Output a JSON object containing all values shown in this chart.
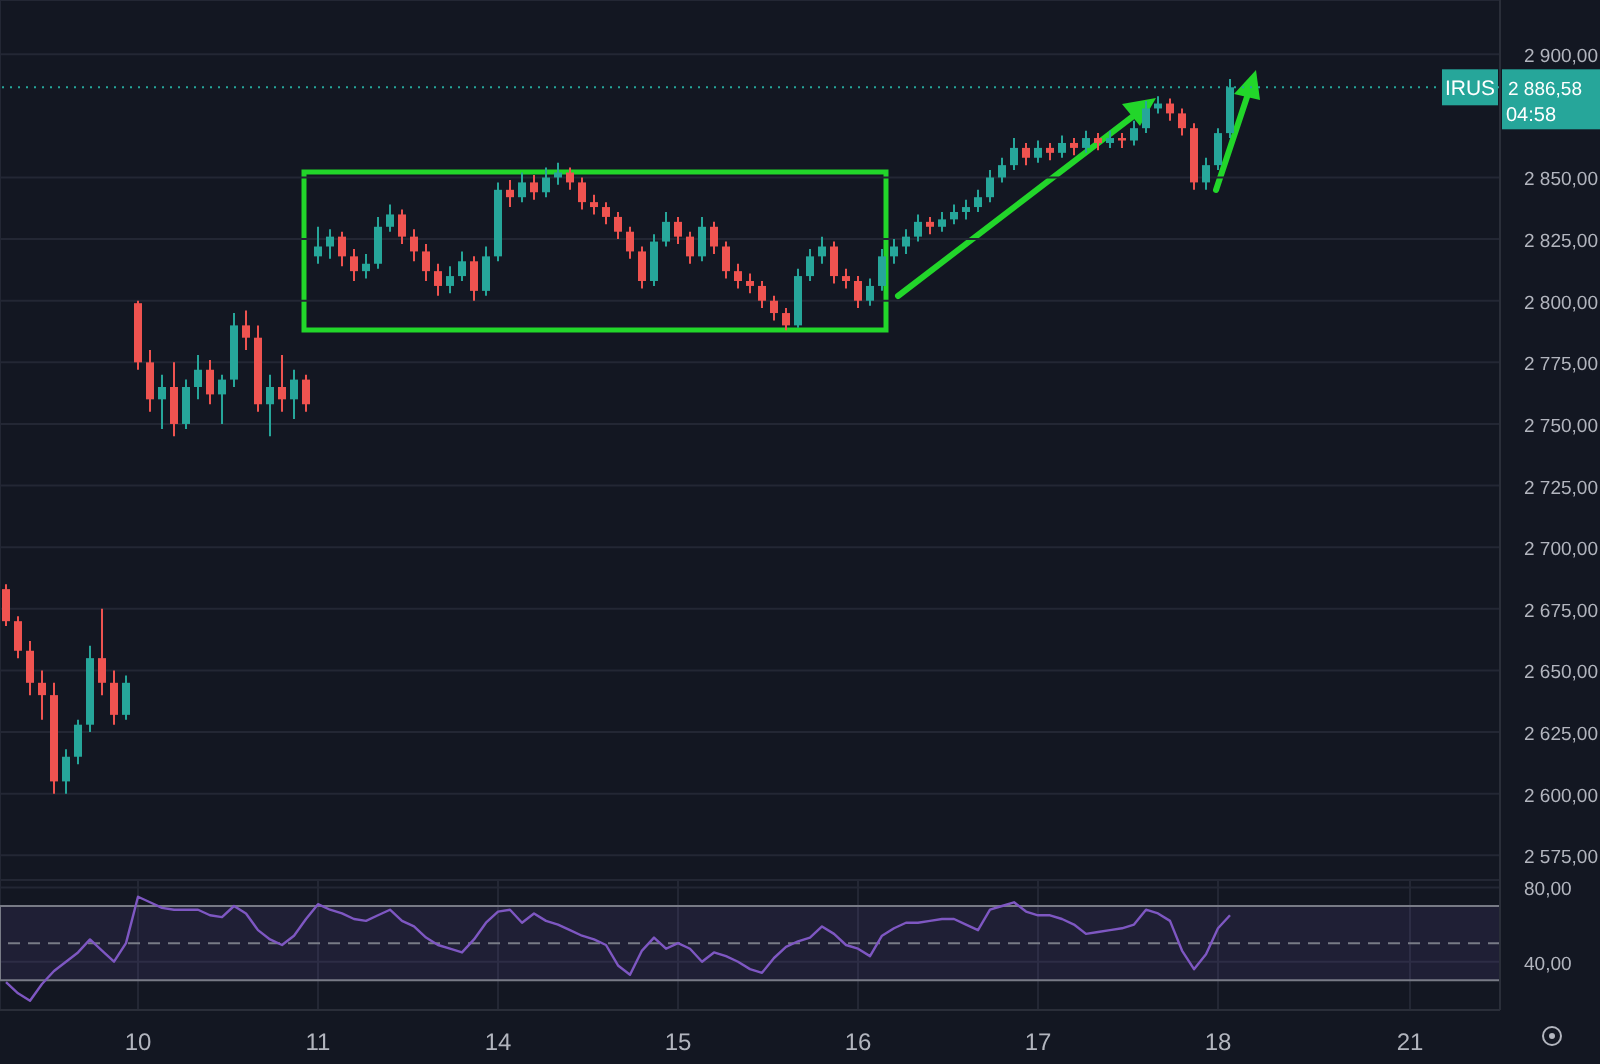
{
  "chart_data": [
    {
      "type": "candlestick",
      "tick_labels": "y",
      "grid": true,
      "categories": [
        null,
        null,
        null,
        null,
        null,
        null,
        null,
        null,
        null,
        null,
        null,
        "10",
        null,
        null,
        null,
        null,
        null,
        null,
        null,
        null,
        null,
        null,
        null,
        null,
        null,
        null,
        "11",
        null,
        null,
        null,
        null,
        null,
        null,
        null,
        null,
        null,
        null,
        null,
        null,
        null,
        null,
        "14",
        null,
        null,
        null,
        null,
        null,
        null,
        null,
        null,
        null,
        null,
        null,
        null,
        null,
        null,
        "15",
        null,
        null,
        null,
        null,
        null,
        null,
        null,
        null,
        null,
        null,
        null,
        null,
        null,
        null,
        "16",
        null,
        null,
        null,
        null,
        null,
        null,
        null,
        null,
        null,
        null,
        null,
        null,
        null,
        null,
        "17",
        null,
        null,
        null,
        null,
        null,
        null,
        null,
        null,
        null,
        null,
        null,
        null,
        null,
        null,
        "18",
        null,
        null,
        null,
        null,
        null,
        null,
        null,
        null,
        null,
        null,
        null,
        null,
        null,
        null,
        null,
        "21",
        null,
        null,
        null,
        null,
        null,
        null,
        null
      ],
      "ohlc": [
        [
          2683,
          2685,
          2668,
          2670
        ],
        [
          2670,
          2672,
          2655,
          2658
        ],
        [
          2658,
          2662,
          2640,
          2645
        ],
        [
          2645,
          2650,
          2630,
          2640
        ],
        [
          2640,
          2645,
          2600,
          2605
        ],
        [
          2605,
          2618,
          2600,
          2615
        ],
        [
          2615,
          2630,
          2612,
          2628
        ],
        [
          2628,
          2660,
          2625,
          2655
        ],
        [
          2655,
          2675,
          2640,
          2645
        ],
        [
          2645,
          2650,
          2628,
          2632
        ],
        [
          2632,
          2648,
          2630,
          2645
        ],
        [
          2799,
          2800,
          2772,
          2775
        ],
        [
          2775,
          2780,
          2755,
          2760
        ],
        [
          2760,
          2770,
          2748,
          2765
        ],
        [
          2765,
          2775,
          2745,
          2750
        ],
        [
          2750,
          2768,
          2748,
          2765
        ],
        [
          2765,
          2778,
          2760,
          2772
        ],
        [
          2772,
          2776,
          2758,
          2762
        ],
        [
          2762,
          2770,
          2750,
          2768
        ],
        [
          2768,
          2795,
          2765,
          2790
        ],
        [
          2790,
          2796,
          2780,
          2785
        ],
        [
          2785,
          2790,
          2755,
          2758
        ],
        [
          2758,
          2770,
          2745,
          2765
        ],
        [
          2765,
          2778,
          2755,
          2760
        ],
        [
          2760,
          2772,
          2752,
          2768
        ],
        [
          2768,
          2770,
          2755,
          2758
        ],
        [
          2818,
          2830,
          2815,
          2822
        ],
        [
          2822,
          2829,
          2817,
          2826
        ],
        [
          2826,
          2828,
          2814,
          2818
        ],
        [
          2818,
          2821,
          2808,
          2812
        ],
        [
          2812,
          2819,
          2809,
          2815
        ],
        [
          2815,
          2834,
          2813,
          2830
        ],
        [
          2830,
          2839,
          2828,
          2835
        ],
        [
          2835,
          2837,
          2823,
          2826
        ],
        [
          2826,
          2829,
          2816,
          2820
        ],
        [
          2820,
          2823,
          2808,
          2812
        ],
        [
          2812,
          2815,
          2802,
          2806
        ],
        [
          2806,
          2814,
          2803,
          2810
        ],
        [
          2810,
          2820,
          2808,
          2816
        ],
        [
          2816,
          2818,
          2800,
          2804
        ],
        [
          2804,
          2822,
          2802,
          2818
        ],
        [
          2818,
          2848,
          2816,
          2845
        ],
        [
          2845,
          2849,
          2838,
          2842
        ],
        [
          2842,
          2852,
          2840,
          2848
        ],
        [
          2848,
          2851,
          2841,
          2844
        ],
        [
          2844,
          2854,
          2842,
          2850
        ],
        [
          2850,
          2856,
          2847,
          2852
        ],
        [
          2852,
          2854,
          2845,
          2848
        ],
        [
          2848,
          2850,
          2837,
          2840
        ],
        [
          2840,
          2843,
          2835,
          2838
        ],
        [
          2838,
          2840,
          2831,
          2834
        ],
        [
          2834,
          2836,
          2825,
          2828
        ],
        [
          2828,
          2830,
          2817,
          2820
        ],
        [
          2820,
          2822,
          2805,
          2808
        ],
        [
          2808,
          2827,
          2806,
          2824
        ],
        [
          2824,
          2836,
          2822,
          2832
        ],
        [
          2832,
          2834,
          2823,
          2826
        ],
        [
          2826,
          2828,
          2815,
          2818
        ],
        [
          2818,
          2834,
          2816,
          2830
        ],
        [
          2830,
          2832,
          2819,
          2822
        ],
        [
          2822,
          2824,
          2809,
          2812
        ],
        [
          2812,
          2815,
          2805,
          2808
        ],
        [
          2808,
          2811,
          2803,
          2806
        ],
        [
          2806,
          2808,
          2797,
          2800
        ],
        [
          2800,
          2802,
          2792,
          2795
        ],
        [
          2795,
          2797,
          2788,
          2790
        ],
        [
          2790,
          2813,
          2789,
          2810
        ],
        [
          2810,
          2821,
          2808,
          2818
        ],
        [
          2818,
          2826,
          2815,
          2822
        ],
        [
          2822,
          2824,
          2807,
          2810
        ],
        [
          2810,
          2813,
          2805,
          2808
        ],
        [
          2808,
          2810,
          2797,
          2800
        ],
        [
          2800,
          2809,
          2798,
          2806
        ],
        [
          2806,
          2821,
          2804,
          2818
        ],
        [
          2818,
          2825,
          2815,
          2822
        ],
        [
          2822,
          2829,
          2819,
          2826
        ],
        [
          2826,
          2835,
          2824,
          2832
        ],
        [
          2832,
          2834,
          2827,
          2830
        ],
        [
          2830,
          2836,
          2828,
          2833
        ],
        [
          2833,
          2839,
          2831,
          2836
        ],
        [
          2836,
          2841,
          2833,
          2838
        ],
        [
          2838,
          2845,
          2836,
          2842
        ],
        [
          2842,
          2853,
          2840,
          2850
        ],
        [
          2850,
          2858,
          2848,
          2855
        ],
        [
          2855,
          2866,
          2853,
          2862
        ],
        [
          2862,
          2864,
          2855,
          2858
        ],
        [
          2858,
          2865,
          2856,
          2862
        ],
        [
          2862,
          2864,
          2857,
          2860
        ],
        [
          2860,
          2867,
          2858,
          2864
        ],
        [
          2864,
          2866,
          2859,
          2862
        ],
        [
          2862,
          2869,
          2860,
          2866
        ],
        [
          2866,
          2868,
          2861,
          2864
        ],
        [
          2864,
          2869,
          2862,
          2866
        ],
        [
          2866,
          2868,
          2862,
          2865
        ],
        [
          2865,
          2873,
          2863,
          2870
        ],
        [
          2870,
          2881,
          2868,
          2878
        ],
        [
          2878,
          2883,
          2876,
          2880
        ],
        [
          2880,
          2882,
          2873,
          2876
        ],
        [
          2876,
          2878,
          2867,
          2870
        ],
        [
          2870,
          2872,
          2845,
          2848
        ],
        [
          2848,
          2858,
          2845,
          2855
        ],
        [
          2855,
          2870,
          2853,
          2868
        ],
        [
          2868,
          2890,
          2866,
          2886.58
        ],
        null,
        null,
        null,
        null,
        null,
        null,
        null,
        null,
        null,
        null,
        null,
        null,
        null,
        null,
        null,
        null,
        null,
        null,
        null,
        null,
        null,
        null
      ],
      "ylim": [
        2565,
        2922
      ],
      "yticks": [
        {
          "value": 2575,
          "label": "2 575,00"
        },
        {
          "value": 2600,
          "label": "2 600,00"
        },
        {
          "value": 2625,
          "label": "2 625,00"
        },
        {
          "value": 2650,
          "label": "2 650,00"
        },
        {
          "value": 2675,
          "label": "2 675,00"
        },
        {
          "value": 2700,
          "label": "2 700,00"
        },
        {
          "value": 2725,
          "label": "2 725,00"
        },
        {
          "value": 2750,
          "label": "2 750,00"
        },
        {
          "value": 2775,
          "label": "2 775,00"
        },
        {
          "value": 2800,
          "label": "2 800,00"
        },
        {
          "value": 2825,
          "label": "2 825,00"
        },
        {
          "value": 2850,
          "label": "2 850,00"
        },
        {
          "value": 2900,
          "label": "2 900,00"
        }
      ],
      "ref_lines": [
        {
          "axis": "y",
          "value": 2886.58,
          "label": "2 886,58",
          "color": "#26a69a",
          "line_style": "dotted"
        }
      ],
      "annotations": [
        "IRUS",
        "04:58"
      ]
    },
    {
      "type": "line",
      "grid": true,
      "marker": "none",
      "categories": [
        null,
        null,
        null,
        null,
        null,
        null,
        null,
        null,
        null,
        null,
        null,
        "10",
        null,
        null,
        null,
        null,
        null,
        null,
        null,
        null,
        null,
        null,
        null,
        null,
        null,
        null,
        "11",
        null,
        null,
        null,
        null,
        null,
        null,
        null,
        null,
        null,
        null,
        null,
        null,
        null,
        null,
        "14",
        null,
        null,
        null,
        null,
        null,
        null,
        null,
        null,
        null,
        null,
        null,
        null,
        null,
        null,
        "15",
        null,
        null,
        null,
        null,
        null,
        null,
        null,
        null,
        null,
        null,
        null,
        null,
        null,
        null,
        "16",
        null,
        null,
        null,
        null,
        null,
        null,
        null,
        null,
        null,
        null,
        null,
        null,
        null,
        null,
        "17",
        null,
        null,
        null,
        null,
        null,
        null,
        null,
        null,
        null,
        null,
        null,
        null,
        null,
        null,
        "18",
        null,
        null,
        null,
        null,
        null,
        null,
        null,
        null,
        null,
        null,
        null,
        null,
        null,
        null,
        null,
        "21",
        null,
        null,
        null,
        null,
        null,
        null,
        null
      ],
      "series": [
        {
          "color": "#7e57c2",
          "values": [
            29,
            23,
            19,
            28,
            35,
            40,
            45,
            52,
            46,
            40,
            50,
            75,
            72,
            69,
            68,
            68,
            68,
            65,
            64,
            70,
            66,
            57,
            52,
            49,
            54,
            63,
            71,
            68,
            66,
            63,
            62,
            65,
            68,
            62,
            59,
            53,
            49,
            47,
            45,
            52,
            61,
            67,
            68,
            61,
            66,
            62,
            60,
            57,
            54,
            52,
            49,
            38,
            33,
            46,
            53,
            47,
            50,
            47,
            40,
            45,
            43,
            40,
            36,
            34,
            42,
            48,
            51,
            53,
            59,
            55,
            49,
            47,
            43,
            54,
            58,
            61,
            61,
            62,
            63,
            63,
            60,
            57,
            68,
            70,
            72,
            67,
            65,
            65,
            63,
            60,
            55,
            56,
            57,
            58,
            60,
            68,
            66,
            62,
            46,
            36,
            44,
            58,
            65,
            null,
            null,
            null,
            null,
            null,
            null,
            null,
            null,
            null,
            null,
            null,
            null,
            null,
            null,
            null,
            null,
            null,
            null,
            null,
            null,
            null,
            null
          ]
        }
      ],
      "ylim": [
        14,
        84
      ],
      "yticks": [
        {
          "value": 40,
          "label": "40,00"
        },
        {
          "value": 80,
          "label": "80,00"
        }
      ],
      "bands": [
        {
          "axis": "y",
          "from": 30,
          "to": 70,
          "color": "#7e57c2"
        }
      ],
      "ref_lines": [
        {
          "axis": "y",
          "value": 50,
          "color": "#787b86",
          "line_style": "dashed"
        }
      ]
    }
  ]
}
